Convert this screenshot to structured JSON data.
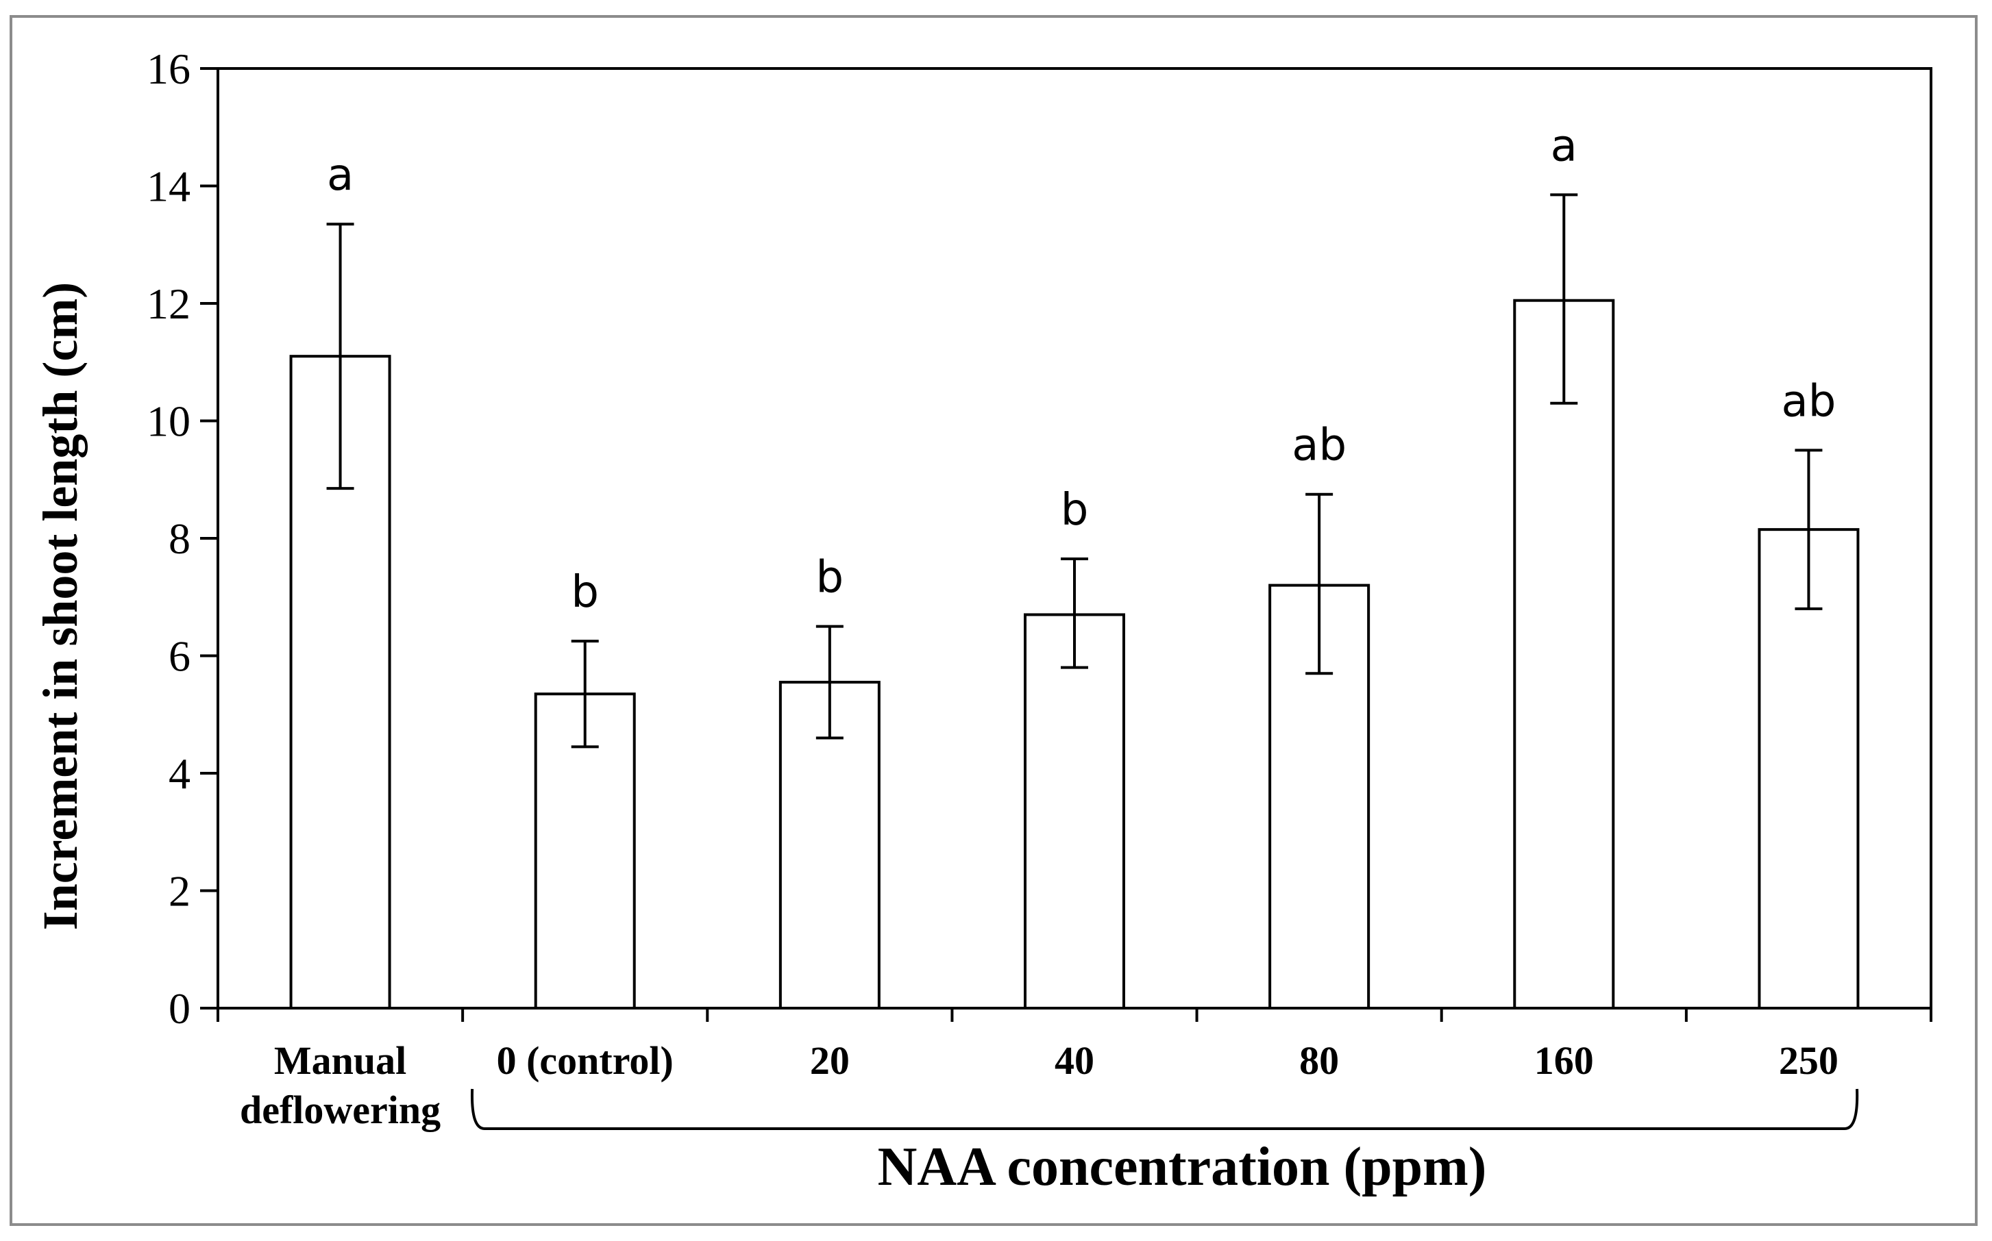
{
  "chart_data": {
    "type": "bar",
    "title": "",
    "xlabel": "",
    "ylabel": "Increment in shoot length (cm)",
    "group_label": "NAA concentration (ppm)",
    "categories": [
      [
        "Manual",
        "deflowering"
      ],
      [
        "0 (control)"
      ],
      [
        "20"
      ],
      [
        "40"
      ],
      [
        "80"
      ],
      [
        "160"
      ],
      [
        "250"
      ]
    ],
    "values": [
      11.1,
      5.35,
      5.55,
      6.7,
      7.2,
      12.05,
      8.15
    ],
    "error_high": [
      13.35,
      6.25,
      6.5,
      7.65,
      8.75,
      13.85,
      9.5
    ],
    "error_low": [
      8.85,
      4.45,
      4.6,
      5.8,
      5.7,
      10.3,
      6.8
    ],
    "significance": [
      "a",
      "b",
      "b",
      "b",
      "ab",
      "a",
      "ab"
    ],
    "ylim": [
      0,
      16
    ],
    "yticks": [
      0,
      2,
      4,
      6,
      8,
      10,
      12,
      14,
      16
    ],
    "grid": false,
    "legend": "none",
    "bar_fill": "#ffffff",
    "bar_stroke": "#000000"
  }
}
